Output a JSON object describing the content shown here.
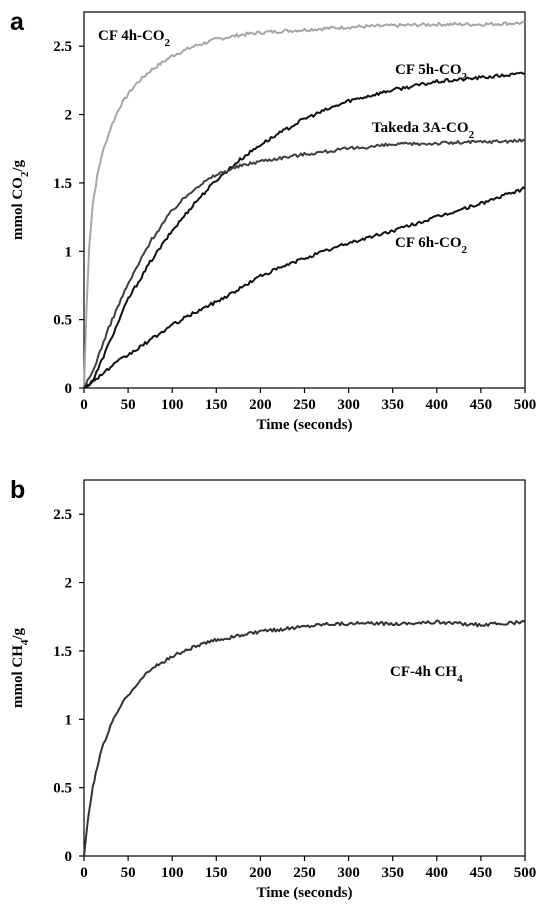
{
  "panels": [
    {
      "letter": "a",
      "ylabel": {
        "main": "mmol CO",
        "sub": "2",
        "tail": "/g"
      },
      "xlabel": "Time (seconds)"
    },
    {
      "letter": "b",
      "ylabel": {
        "main": "mmol CH",
        "sub": "4",
        "tail": "/g"
      },
      "xlabel": "Time (seconds)"
    }
  ],
  "chart_data": [
    {
      "type": "line",
      "panel": "a",
      "xlabel": "Time (seconds)",
      "ylabel": "mmol CO2/g",
      "xlim": [
        0,
        500
      ],
      "ylim": [
        0,
        2.75
      ],
      "xticks": [
        "0",
        "50",
        "100",
        "150",
        "200",
        "250",
        "300",
        "350",
        "400",
        "450",
        "500"
      ],
      "yticks": [
        "0",
        "0.5",
        "1",
        "1.5",
        "2",
        "2.5"
      ],
      "grid": false,
      "legend": "none",
      "series": [
        {
          "name": "CF 4h-CO2",
          "label": {
            "main": "CF 4h-CO",
            "sub": "2"
          },
          "color": "#a6a6a6",
          "x": [
            0,
            3,
            6,
            10,
            15,
            20,
            30,
            40,
            50,
            60,
            75,
            100,
            125,
            150,
            175,
            200,
            250,
            300,
            350,
            400,
            450,
            500
          ],
          "y": [
            0,
            0.6,
            1.05,
            1.35,
            1.55,
            1.7,
            1.9,
            2.05,
            2.15,
            2.23,
            2.32,
            2.43,
            2.5,
            2.55,
            2.58,
            2.6,
            2.62,
            2.64,
            2.65,
            2.66,
            2.66,
            2.67
          ]
        },
        {
          "name": "CF 5h-CO2",
          "label": {
            "main": "CF 5h-CO",
            "sub": "2"
          },
          "color": "#111111",
          "x": [
            0,
            10,
            20,
            30,
            40,
            50,
            75,
            100,
            125,
            150,
            175,
            200,
            250,
            300,
            350,
            400,
            450,
            500
          ],
          "y": [
            0,
            0.05,
            0.2,
            0.35,
            0.5,
            0.65,
            0.92,
            1.15,
            1.35,
            1.52,
            1.66,
            1.78,
            1.97,
            2.1,
            2.18,
            2.24,
            2.27,
            2.3
          ]
        },
        {
          "name": "Takeda 3A-CO2",
          "label": {
            "main": "Takeda 3A-CO",
            "sub": "2"
          },
          "color": "#404040",
          "x": [
            0,
            10,
            20,
            30,
            40,
            50,
            75,
            100,
            125,
            150,
            175,
            200,
            250,
            300,
            350,
            400,
            450,
            500
          ],
          "y": [
            0,
            0.12,
            0.3,
            0.47,
            0.62,
            0.76,
            1.07,
            1.3,
            1.46,
            1.56,
            1.62,
            1.66,
            1.71,
            1.75,
            1.78,
            1.79,
            1.8,
            1.81
          ]
        },
        {
          "name": "CF 6h-CO2",
          "label": {
            "main": "CF 6h-CO",
            "sub": "2"
          },
          "color": "#111111",
          "x": [
            0,
            10,
            20,
            30,
            40,
            50,
            75,
            100,
            125,
            150,
            175,
            200,
            250,
            300,
            350,
            400,
            450,
            500
          ],
          "y": [
            0,
            0.05,
            0.1,
            0.15,
            0.2,
            0.24,
            0.35,
            0.46,
            0.55,
            0.63,
            0.72,
            0.82,
            0.95,
            1.06,
            1.15,
            1.25,
            1.35,
            1.46
          ]
        }
      ]
    },
    {
      "type": "line",
      "panel": "b",
      "xlabel": "Time (seconds)",
      "ylabel": "mmol CH4/g",
      "xlim": [
        0,
        500
      ],
      "ylim": [
        0,
        2.75
      ],
      "xticks": [
        "0",
        "50",
        "100",
        "150",
        "200",
        "250",
        "300",
        "350",
        "400",
        "450",
        "500"
      ],
      "yticks": [
        "0",
        "0.5",
        "1",
        "1.5",
        "2",
        "2.5"
      ],
      "grid": false,
      "legend": "none",
      "series": [
        {
          "name": "CF-4h CH4",
          "label": {
            "main": "CF-4h CH",
            "sub": "4"
          },
          "color": "#333333",
          "x": [
            0,
            5,
            10,
            15,
            20,
            30,
            40,
            50,
            60,
            75,
            100,
            125,
            150,
            175,
            200,
            225,
            250,
            275,
            300,
            350,
            400,
            450,
            500
          ],
          "y": [
            0,
            0.3,
            0.5,
            0.65,
            0.78,
            0.95,
            1.08,
            1.18,
            1.26,
            1.36,
            1.46,
            1.53,
            1.58,
            1.61,
            1.64,
            1.66,
            1.68,
            1.7,
            1.7,
            1.7,
            1.71,
            1.69,
            1.71
          ]
        }
      ]
    }
  ]
}
